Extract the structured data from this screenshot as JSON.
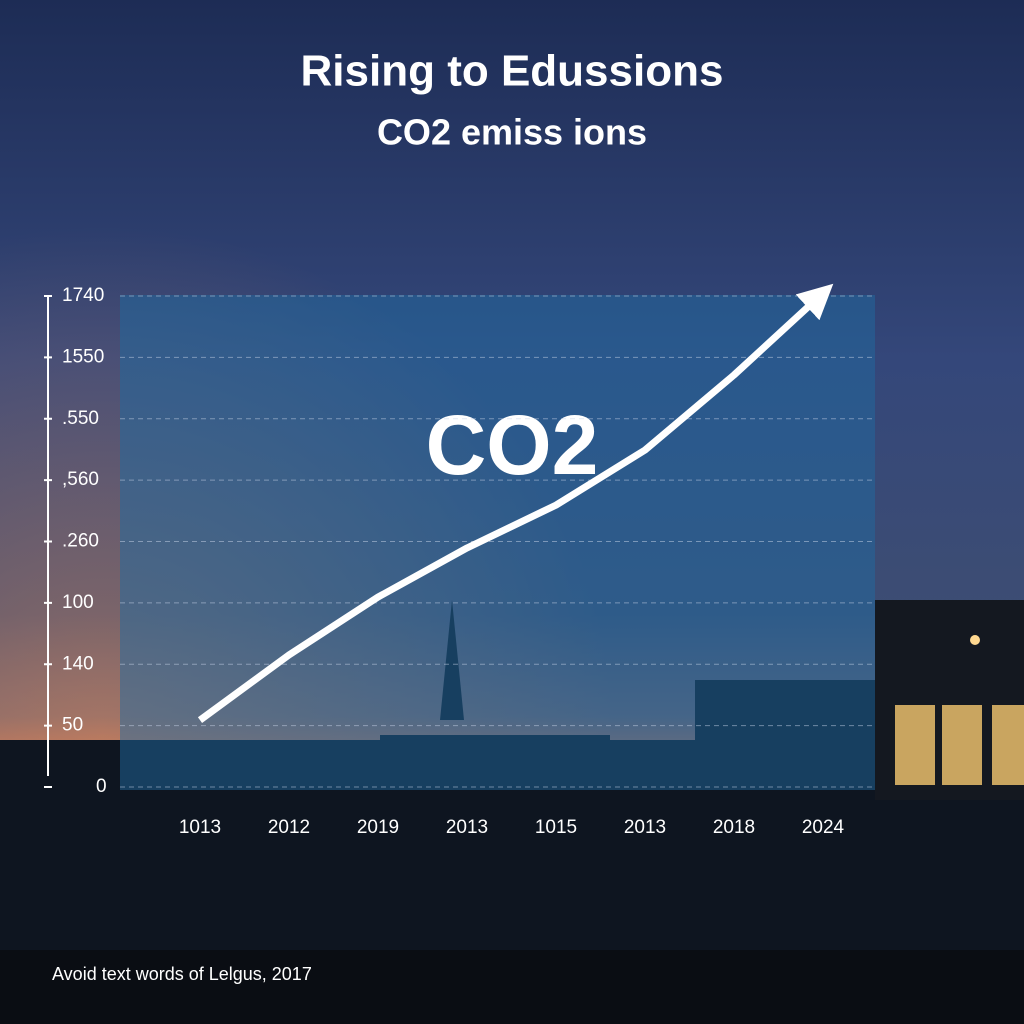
{
  "chart_data": {
    "type": "line",
    "title": "Rising to Edussions",
    "subtitle": "CO2 emiss ions",
    "annotation": "CO2",
    "footer": "Avoid text words of Lelgus, 2017",
    "categories": [
      "1013",
      "2012",
      "2019",
      "2013",
      "1015",
      "2013",
      "2018",
      "2024"
    ],
    "series": [
      {
        "name": "CO2",
        "color": "#ffffff",
        "values": [
          237,
          468,
          673,
          847,
          999,
          1194,
          1460,
          1750
        ]
      }
    ],
    "ylim": [
      0,
      1740
    ],
    "yticks": [
      0,
      {
        "value": 217.5,
        "label": "50"
      },
      {
        "value": 435,
        "label": "140"
      },
      {
        "value": 652.5,
        "label": "100"
      },
      {
        "value": 870,
        "label": ".260"
      },
      {
        "value": 1087.5,
        "label": ",560"
      },
      {
        "value": 1305,
        "label": ".550"
      },
      {
        "value": 1522.5,
        "label": "1550"
      },
      1740
    ],
    "grid": true
  }
}
